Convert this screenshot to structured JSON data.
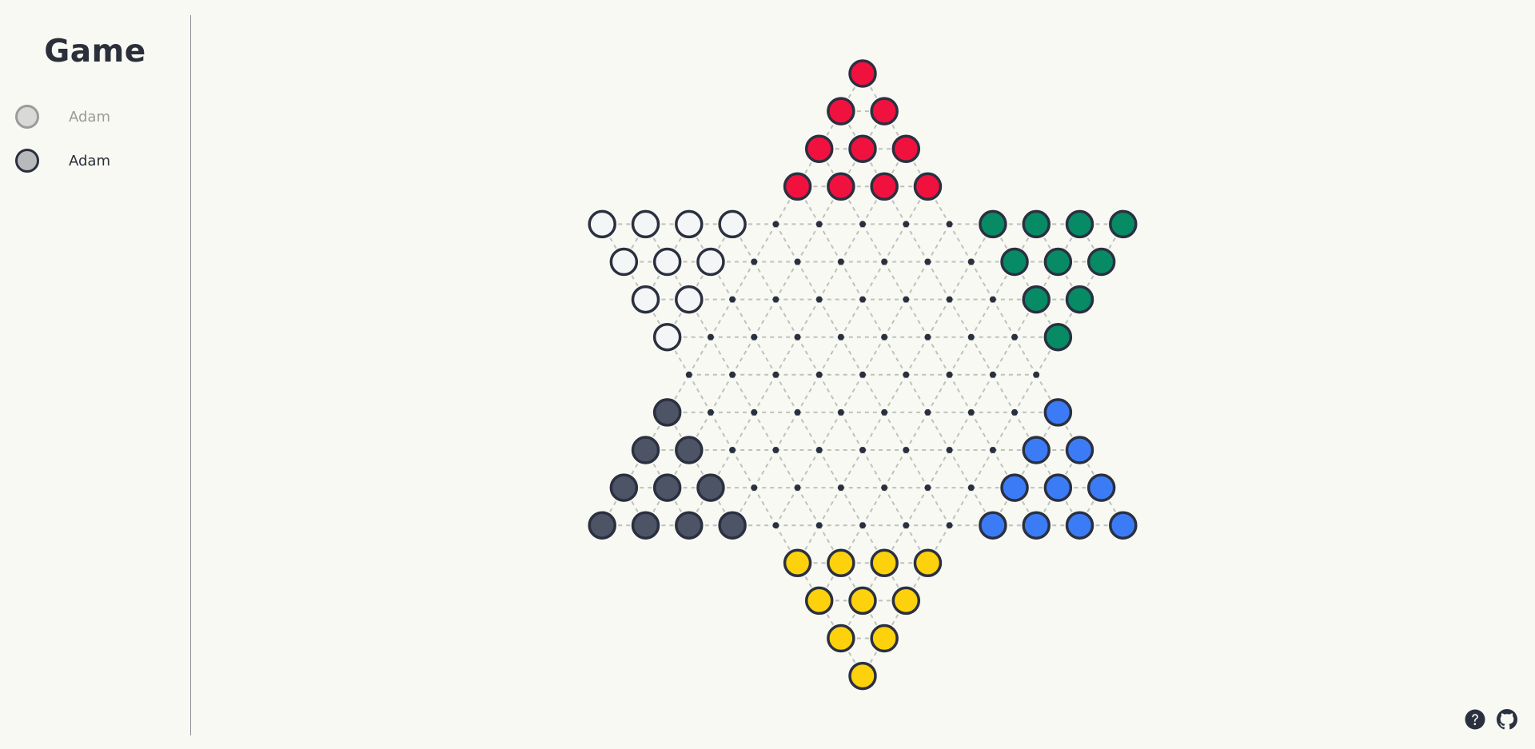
{
  "sidebar": {
    "title": "Game",
    "players": [
      {
        "name": "Adam",
        "state": "inactive"
      },
      {
        "name": "Adam",
        "state": "active"
      }
    ]
  },
  "board": {
    "type": "chinese-checkers",
    "rows": 17,
    "colors": {
      "red": "#f0113f",
      "green": "#068b65",
      "white": "#f4f5f6",
      "slate": "#4c5465",
      "blue": "#3b7cf6",
      "yellow": "#fdd10c",
      "outline": "#2b3040",
      "hole": "#2b3040",
      "grid": "#bfc1bd"
    },
    "camps": {
      "top": "red",
      "top-right": "green",
      "top-left": "white",
      "bottom-left": "slate",
      "bottom-right": "blue",
      "bottom": "yellow"
    }
  },
  "footer": {
    "help_icon": "question-circle-icon",
    "github_icon": "github-icon"
  }
}
